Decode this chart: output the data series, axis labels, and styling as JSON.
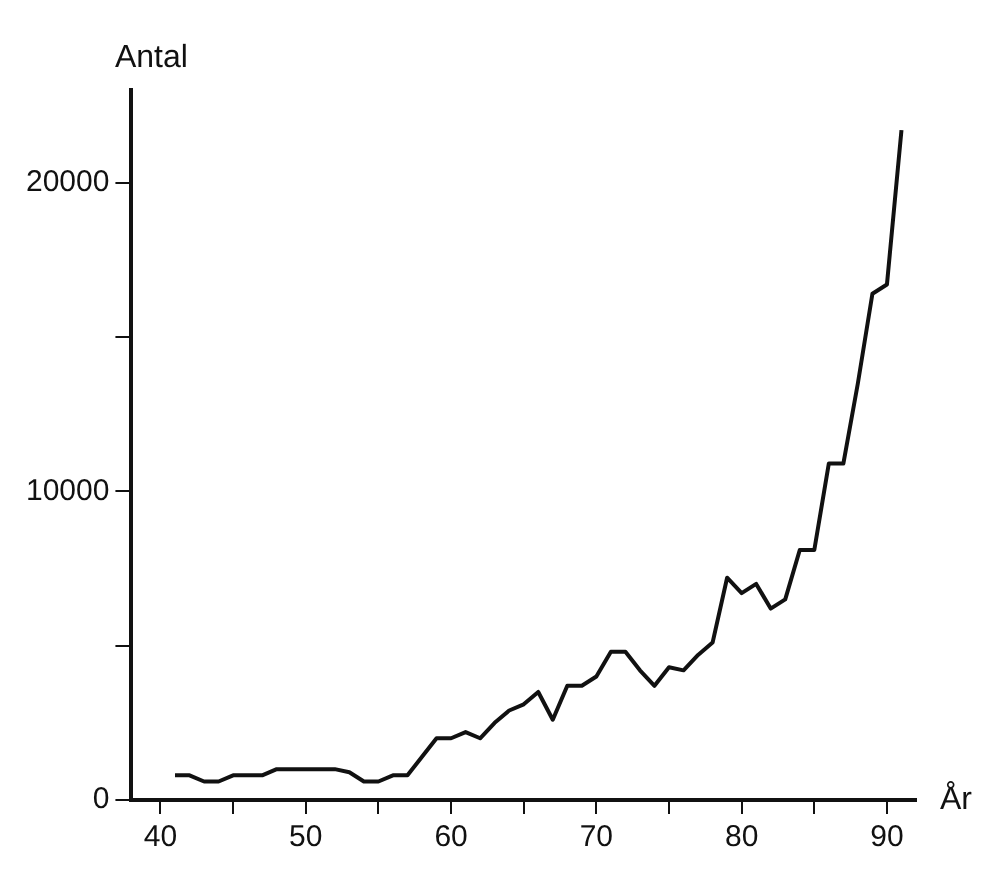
{
  "chart_data": {
    "type": "line",
    "xlabel": "År",
    "ylabel": "Antal",
    "x": [
      41,
      42,
      43,
      44,
      45,
      46,
      47,
      48,
      49,
      50,
      51,
      52,
      53,
      54,
      55,
      56,
      57,
      58,
      59,
      60,
      61,
      62,
      63,
      64,
      65,
      66,
      67,
      68,
      69,
      70,
      71,
      72,
      73,
      74,
      75,
      76,
      77,
      78,
      79,
      80,
      81,
      82,
      83,
      84,
      85,
      86,
      87,
      88,
      89,
      90,
      91
    ],
    "series": [
      {
        "color": "#111111",
        "values": [
          800,
          800,
          600,
          600,
          800,
          800,
          800,
          1000,
          1000,
          1000,
          1000,
          1000,
          900,
          600,
          600,
          800,
          800,
          1400,
          2000,
          2000,
          2200,
          2000,
          2500,
          2900,
          3100,
          3500,
          2600,
          3700,
          3700,
          4000,
          4800,
          4800,
          4200,
          3700,
          4300,
          4200,
          4700,
          5100,
          7200,
          6700,
          7000,
          6200,
          6500,
          8100,
          8100,
          10900,
          10900,
          13500,
          16400,
          16700,
          21700
        ]
      }
    ],
    "xlim": [
      38,
      92
    ],
    "ylim": [
      0,
      23000
    ],
    "xticks": [
      40,
      {
        "value": 45,
        "label": null
      },
      50,
      {
        "value": 55,
        "label": null
      },
      60,
      {
        "value": 65,
        "label": null
      },
      70,
      {
        "value": 75,
        "label": null
      },
      80,
      {
        "value": 85,
        "label": null
      },
      90
    ],
    "yticks": [
      0,
      {
        "value": 5000,
        "label": null
      },
      10000,
      {
        "value": 15000,
        "label": null
      },
      20000
    ],
    "grid": false,
    "legend": false,
    "marker": "none",
    "line_style": "solid"
  }
}
